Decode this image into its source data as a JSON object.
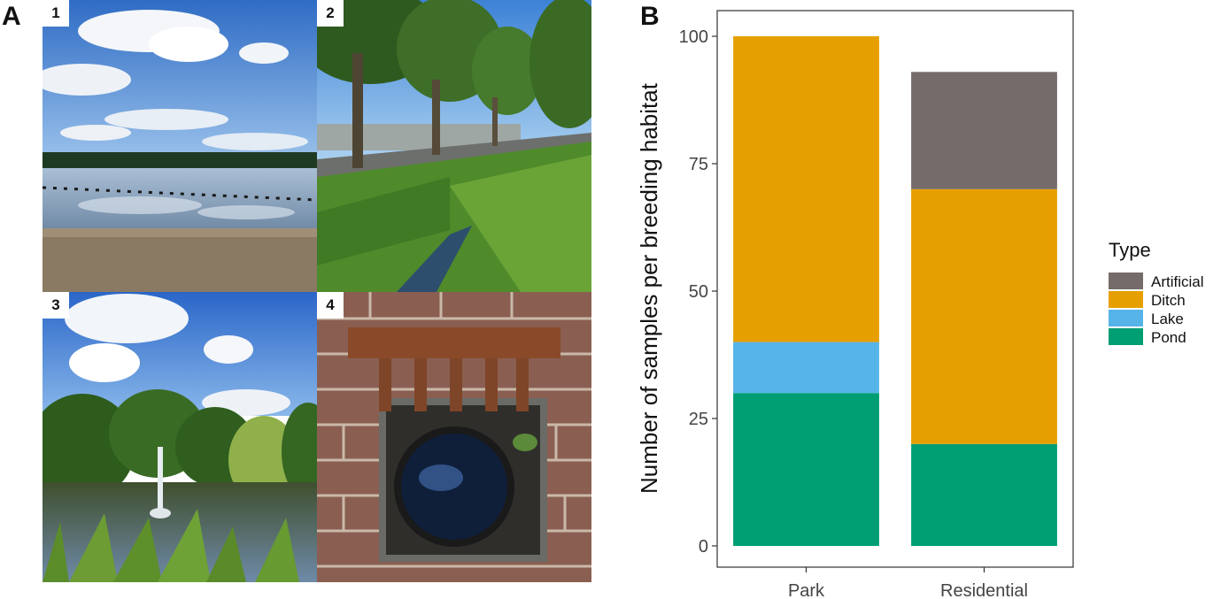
{
  "panels": {
    "a_label": "A",
    "b_label": "B",
    "photos": [
      {
        "number": "1",
        "scene": "lake-beach"
      },
      {
        "number": "2",
        "scene": "roadside-ditch"
      },
      {
        "number": "3",
        "scene": "park-pond-fountain"
      },
      {
        "number": "4",
        "scene": "street-drain"
      }
    ]
  },
  "chart_data": {
    "type": "bar",
    "stacked": true,
    "categories": [
      "Park",
      "Residential"
    ],
    "series": [
      {
        "name": "Pond",
        "color": "#009E73",
        "values": [
          30,
          20
        ]
      },
      {
        "name": "Lake",
        "color": "#56B4E9",
        "values": [
          10,
          0
        ]
      },
      {
        "name": "Ditch",
        "color": "#E69F00",
        "values": [
          60,
          50
        ]
      },
      {
        "name": "Artificial",
        "color": "#756C69",
        "values": [
          0,
          23
        ]
      }
    ],
    "xlabel": "",
    "ylabel": "Number of samples per breeding habitat",
    "ylim": [
      0,
      105
    ],
    "yticks": [
      0,
      25,
      50,
      75,
      100
    ],
    "grid": false,
    "legend": {
      "title": "Type",
      "placement": "right",
      "entries": [
        "Artificial",
        "Ditch",
        "Lake",
        "Pond"
      ]
    }
  }
}
